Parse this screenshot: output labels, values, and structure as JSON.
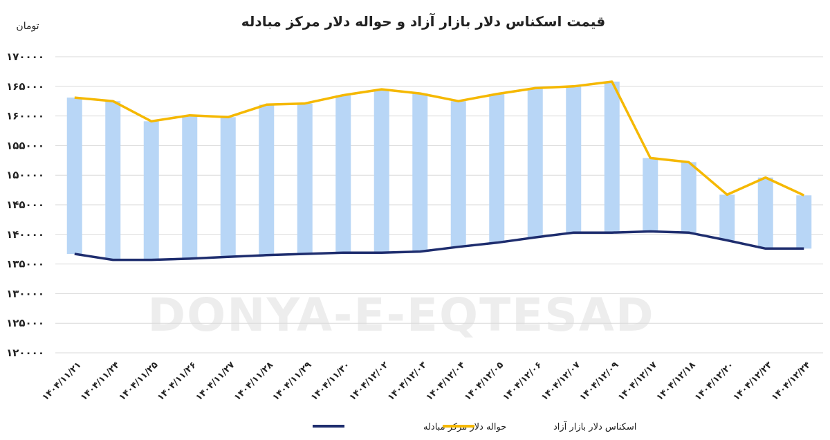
{
  "chart_data": {
    "type": "bar",
    "title": "قیمت اسکناس دلار بازار آزاد و حواله دلار مرکز مبادله",
    "unit_label": "تومان",
    "watermark": "DONYA-E-EQTESAD",
    "ylim": [
      120000,
      170000
    ],
    "y_ticks": [
      "۱۷۰۰۰۰",
      "۱۶۵۰۰۰",
      "۱۶۰۰۰۰",
      "۱۵۵۰۰۰",
      "۱۵۰۰۰۰",
      "۱۴۵۰۰۰",
      "۱۴۰۰۰۰",
      "۱۳۵۰۰۰",
      "۱۳۰۰۰۰",
      "۱۲۵۰۰۰",
      "۱۲۰۰۰۰"
    ],
    "y_tick_values": [
      170000,
      165000,
      160000,
      155000,
      150000,
      145000,
      140000,
      135000,
      130000,
      125000,
      120000
    ],
    "categories": [
      "۱۴۰۴/۱۱/۲۱",
      "۱۴۰۴/۱۱/۲۴",
      "۱۴۰۴/۱۱/۲۵",
      "۱۴۰۴/۱۱/۲۶",
      "۱۴۰۴/۱۱/۲۷",
      "۱۴۰۴/۱۱/۲۸",
      "۱۴۰۴/۱۱/۲۹",
      "۱۴۰۴/۱۱/۳۰",
      "۱۴۰۴/۱۲/۰۲",
      "۱۴۰۴/۱۲/۰۳",
      "۱۴۰۴/۱۲/۰۴",
      "۱۴۰۴/۱۲/۰۵",
      "۱۴۰۴/۱۲/۰۶",
      "۱۴۰۴/۱۲/۰۷",
      "۱۴۰۴/۱۲/۰۹",
      "۱۴۰۴/۱۲/۱۷",
      "۱۴۰۴/۱۲/۱۸",
      "۱۴۰۴/۱۲/۲۰",
      "۱۴۰۴/۱۲/۲۳",
      "۱۴۰۴/۱۲/۲۴"
    ],
    "series": [
      {
        "name": "اسکناس دلار بازار آزاد",
        "color": "#f5b800",
        "values": [
          163100,
          162500,
          159100,
          160100,
          159800,
          161900,
          162100,
          163500,
          164500,
          163800,
          162500,
          163700,
          164700,
          165000,
          165800,
          152900,
          152200,
          146700,
          149600,
          146600
        ]
      },
      {
        "name": "حواله دلار مرکز مبادله",
        "color": "#1e2d6e",
        "values": [
          136700,
          135700,
          135700,
          135900,
          136200,
          136500,
          136700,
          136900,
          136900,
          137100,
          137900,
          138600,
          139500,
          140300,
          140300,
          140500,
          140300,
          139000,
          137600,
          137600
        ]
      }
    ],
    "bar_color": "#b8d6f6",
    "legend": [
      {
        "label": "اسکناس دلار بازار آزاد",
        "color": "#f5b800"
      },
      {
        "label": "حواله دلار مرکز مبادله",
        "color": "#1e2d6e"
      }
    ],
    "legend_position": "bottom",
    "grid": true
  }
}
